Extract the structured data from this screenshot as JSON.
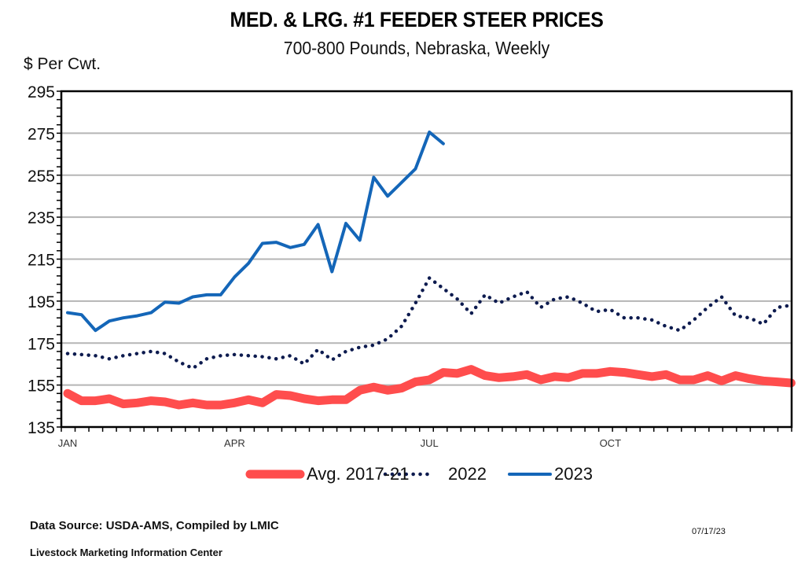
{
  "chart_data": {
    "type": "line",
    "title": "MED. & LRG. #1 FEEDER STEER PRICES",
    "subtitle": "700-800 Pounds, Nebraska, Weekly",
    "ylabel": "$ Per Cwt.",
    "xlabel": "",
    "ylim": [
      135,
      295
    ],
    "yticks": [
      295,
      275,
      255,
      235,
      215,
      195,
      175,
      155,
      135
    ],
    "x_tick_labels": [
      {
        "label": "JAN",
        "week": 1
      },
      {
        "label": "APR",
        "week": 13
      },
      {
        "label": "JUL",
        "week": 27
      },
      {
        "label": "OCT",
        "week": 40
      }
    ],
    "x_unit": "week of year",
    "grid": true,
    "legend": "bottom",
    "series": [
      {
        "name": "Avg. 2017-21",
        "color": "#ff4d4d",
        "style": "thick-solid",
        "values": [
          151,
          147.5,
          147.5,
          148.5,
          146,
          146.5,
          147.5,
          147,
          145.5,
          146.5,
          145.5,
          145.5,
          146.5,
          148,
          146.5,
          150.5,
          150,
          148.5,
          147.5,
          148,
          148,
          152.5,
          154,
          152.5,
          153.5,
          156.5,
          157.5,
          161,
          160.5,
          162.5,
          159.5,
          158.5,
          159,
          160,
          157.5,
          159,
          158.5,
          160.5,
          160.5,
          161.5,
          161,
          160,
          159,
          160,
          157.5,
          157.5,
          159.5,
          157,
          159.5,
          158,
          157,
          156.5,
          156
        ]
      },
      {
        "name": "2022",
        "color": "#0d1b4f",
        "style": "dotted",
        "values": [
          170,
          169.5,
          169,
          167.5,
          169,
          170,
          171,
          170,
          166,
          163,
          167.5,
          169,
          169.5,
          169,
          168.5,
          167.5,
          169,
          165,
          172,
          167,
          171,
          173,
          174,
          177,
          183,
          194,
          206,
          201,
          196,
          189,
          198,
          194,
          197,
          199.5,
          192,
          196,
          197,
          194,
          190,
          191,
          187,
          187,
          186,
          183,
          181,
          186,
          192,
          197,
          188,
          187,
          184,
          192,
          193
        ]
      },
      {
        "name": "2023",
        "color": "#1466b8",
        "style": "solid",
        "values": [
          189.5,
          188.5,
          181,
          185.5,
          187,
          188,
          189.5,
          194.5,
          194,
          197,
          198,
          198,
          206.5,
          213,
          222.5,
          223,
          220.5,
          222,
          231.5,
          209,
          232,
          224,
          254,
          245,
          251.5,
          258,
          275.5,
          270
        ]
      }
    ]
  },
  "footer": {
    "source": "Data Source:  USDA-AMS, Compiled by LMIC",
    "organization": "Livestock Marketing Information Center",
    "date": "07/17/23"
  }
}
